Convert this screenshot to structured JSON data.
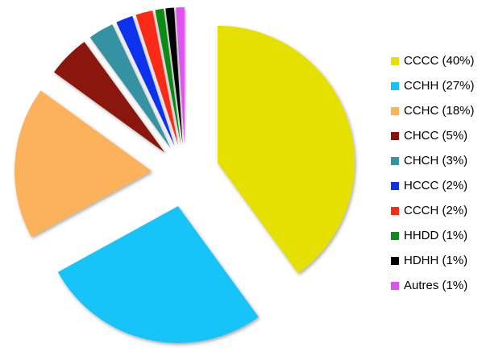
{
  "chart_data": {
    "type": "pie",
    "exploded": true,
    "start": "12 o'clock",
    "direction": "clockwise",
    "legend_position": "right",
    "slices": [
      {
        "label": "CCCC (40%)",
        "value": 40,
        "color": "#e6e000"
      },
      {
        "label": "CCHH (27%)",
        "value": 27,
        "color": "#14c4f8"
      },
      {
        "label": "CCHC (18%)",
        "value": 18,
        "color": "#fbb25a"
      },
      {
        "label": "CHCC (5%)",
        "value": 5,
        "color": "#8a1208"
      },
      {
        "label": "CHCH (3%)",
        "value": 3,
        "color": "#3592a2"
      },
      {
        "label": "HCCC (2%)",
        "value": 2,
        "color": "#1030ee"
      },
      {
        "label": "CCCH (2%)",
        "value": 2,
        "color": "#fa2a16"
      },
      {
        "label": "HHDD (1%)",
        "value": 1,
        "color": "#108a18"
      },
      {
        "label": "HDHH (1%)",
        "value": 1,
        "color": "#000000"
      },
      {
        "label": "Autres (1%)",
        "value": 1,
        "color": "#df52f0"
      }
    ]
  }
}
